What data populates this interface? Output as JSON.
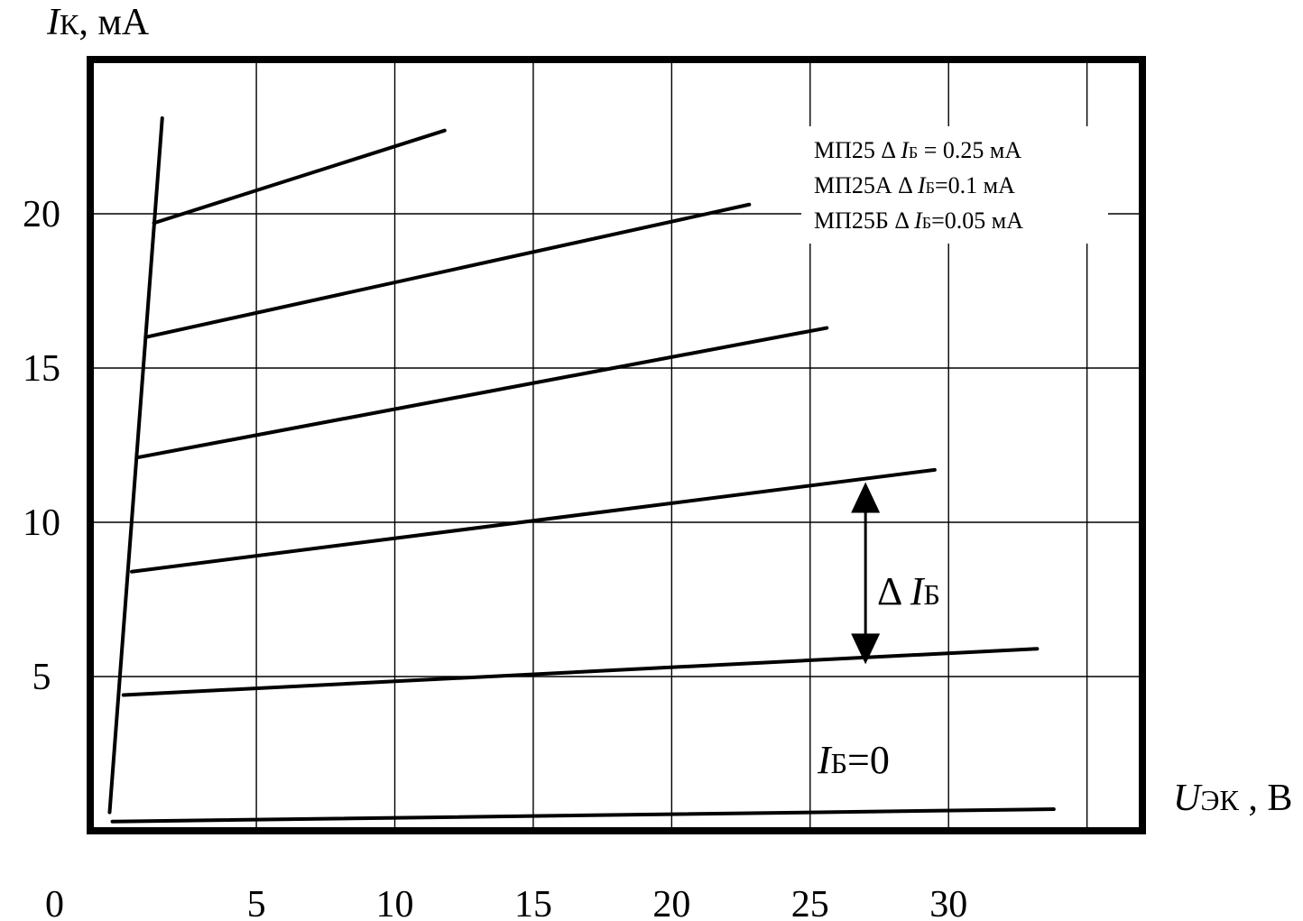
{
  "chart_data": {
    "type": "line",
    "y_axis": {
      "symbol": "I",
      "subscript": "К",
      "unit": ", мА",
      "ticks": [
        "5",
        "10",
        "15",
        "20"
      ],
      "tick_values": [
        5,
        10,
        15,
        20
      ],
      "range": [
        0,
        25
      ]
    },
    "x_axis": {
      "symbol": "U",
      "subscript": "ЭК",
      "unit": " , В",
      "origin_label": "0",
      "ticks": [
        "5",
        "10",
        "15",
        "20",
        "25",
        "30"
      ],
      "tick_values": [
        5,
        10,
        15,
        20,
        25,
        30
      ],
      "range": [
        -1,
        37
      ]
    },
    "grid": true,
    "legend": {
      "position": "top-right",
      "lines": [
        {
          "model": "МП25",
          "rest": " = 0.25 мА"
        },
        {
          "model": "МП25А",
          "rest": "=0.1 мА"
        },
        {
          "model": "МП25Б",
          "rest": "=0.05 мА"
        }
      ],
      "delta": "Δ",
      "sym": "I",
      "sub": "Б"
    },
    "series": [
      {
        "x": [
          -0.2,
          33.8
        ],
        "y": [
          0.3,
          0.7
        ]
      },
      {
        "x": [
          0.2,
          33.2
        ],
        "y": [
          4.4,
          5.9
        ]
      },
      {
        "x": [
          0.5,
          29.5
        ],
        "y": [
          8.4,
          11.7
        ]
      },
      {
        "x": [
          0.7,
          25.6
        ],
        "y": [
          12.1,
          16.3
        ]
      },
      {
        "x": [
          1.0,
          22.8
        ],
        "y": [
          16.0,
          20.3
        ]
      },
      {
        "x": [
          1.3,
          11.8
        ],
        "y": [
          19.7,
          22.7
        ]
      }
    ],
    "envelope": {
      "x": [
        -0.3,
        1.6
      ],
      "y": [
        0.6,
        23.1
      ]
    },
    "annotations": {
      "delta_arrow": {
        "x": 27.0,
        "y_top": 11.3,
        "y_bottom": 5.4
      },
      "delta_label": {
        "delta": "Δ",
        "sym": "I",
        "sub": "Б"
      },
      "zero_label": {
        "sym": "I",
        "sub": "Б",
        "rest": "=0"
      }
    }
  }
}
